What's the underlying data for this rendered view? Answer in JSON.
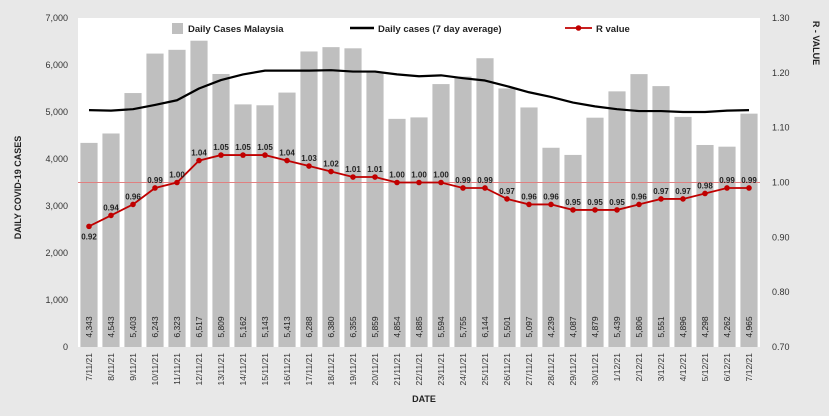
{
  "chart_data": {
    "type": "bar",
    "categories": [
      "7/11/21",
      "8/11/21",
      "9/11/21",
      "10/11/21",
      "11/11/21",
      "12/11/21",
      "13/11/21",
      "14/11/21",
      "15/11/21",
      "16/11/21",
      "17/11/21",
      "18/11/21",
      "19/11/21",
      "20/11/21",
      "21/11/21",
      "22/11/21",
      "23/11/21",
      "24/11/21",
      "25/11/21",
      "26/11/21",
      "27/11/21",
      "28/11/21",
      "29/11/21",
      "30/11/21",
      "1/12/21",
      "2/12/21",
      "3/12/21",
      "4/12/21",
      "5/12/21",
      "6/12/21",
      "7/12/21"
    ],
    "series": [
      {
        "name": "Daily Cases Malaysia",
        "kind": "bar",
        "axis": "left",
        "color": "#bfbfbf",
        "values": [
          4343,
          4543,
          5403,
          6243,
          6323,
          6517,
          5809,
          5162,
          5143,
          5413,
          6288,
          6380,
          6355,
          5859,
          4854,
          4885,
          5594,
          5755,
          6144,
          5501,
          5097,
          4239,
          4087,
          4879,
          5439,
          5806,
          5551,
          4896,
          4298,
          4262,
          4965
        ],
        "labels": [
          "4,343",
          "4,543",
          "5,403",
          "6,243",
          "6,323",
          "6,517",
          "5,809",
          "5,162",
          "5,143",
          "5,413",
          "6,288",
          "6,380",
          "6,355",
          "5,859",
          "4,854",
          "4,885",
          "5,594",
          "5,755",
          "6,144",
          "5,501",
          "5,097",
          "4,239",
          "4,087",
          "4,879",
          "5,439",
          "5,806",
          "5,551",
          "4,896",
          "4,298",
          "4,262",
          "4,965"
        ]
      },
      {
        "name": "Daily cases (7 day average)",
        "kind": "line",
        "axis": "left",
        "color": "#000000",
        "values": [
          5040,
          5030,
          5060,
          5150,
          5250,
          5500,
          5680,
          5800,
          5880,
          5880,
          5880,
          5890,
          5860,
          5860,
          5800,
          5760,
          5780,
          5720,
          5670,
          5550,
          5420,
          5320,
          5200,
          5120,
          5060,
          5020,
          5020,
          5000,
          5000,
          5030,
          5040
        ]
      },
      {
        "name": "R value",
        "kind": "line",
        "axis": "right",
        "color": "#c00000",
        "values": [
          0.92,
          0.94,
          0.96,
          0.99,
          1.0,
          1.04,
          1.05,
          1.05,
          1.05,
          1.04,
          1.03,
          1.02,
          1.01,
          1.01,
          1.0,
          1.0,
          1.0,
          0.99,
          0.99,
          0.97,
          0.96,
          0.96,
          0.95,
          0.95,
          0.95,
          0.96,
          0.97,
          0.97,
          0.98,
          0.99,
          0.99
        ],
        "labels": [
          "0.92",
          "0.94",
          "0.96",
          "0.99",
          "1.00",
          "1.04",
          "1.05",
          "1.05",
          "1.05",
          "1.04",
          "1.03",
          "1.02",
          "1.01",
          "1.01",
          "1.00",
          "1.00",
          "1.00",
          "0.99",
          "0.99",
          "0.97",
          "0.96",
          "0.96",
          "0.95",
          "0.95",
          "0.95",
          "0.96",
          "0.97",
          "0.97",
          "0.98",
          "0.99",
          "0.99"
        ]
      }
    ],
    "xlabel": "DATE",
    "ylabel": "DAILY COVID-19 CASES",
    "ylabel_right": "R - VALUE",
    "ylim": [
      0,
      7000
    ],
    "yticks": [
      0,
      1000,
      2000,
      3000,
      4000,
      5000,
      6000,
      7000
    ],
    "ytick_labels": [
      "0",
      "1,000",
      "2,000",
      "3,000",
      "4,000",
      "5,000",
      "6,000",
      "7,000"
    ],
    "ylim_right": [
      0.7,
      1.3
    ],
    "yticks_right": [
      0.7,
      0.8,
      0.9,
      1.0,
      1.1,
      1.2,
      1.3
    ],
    "ytick_labels_right": [
      "0.70",
      "0.80",
      "0.90",
      "1.00",
      "1.10",
      "1.20",
      "1.30"
    ],
    "reference_line": {
      "axis": "right",
      "value": 1.0,
      "color": "#e08080"
    },
    "grid": false,
    "legend_position": "top"
  }
}
